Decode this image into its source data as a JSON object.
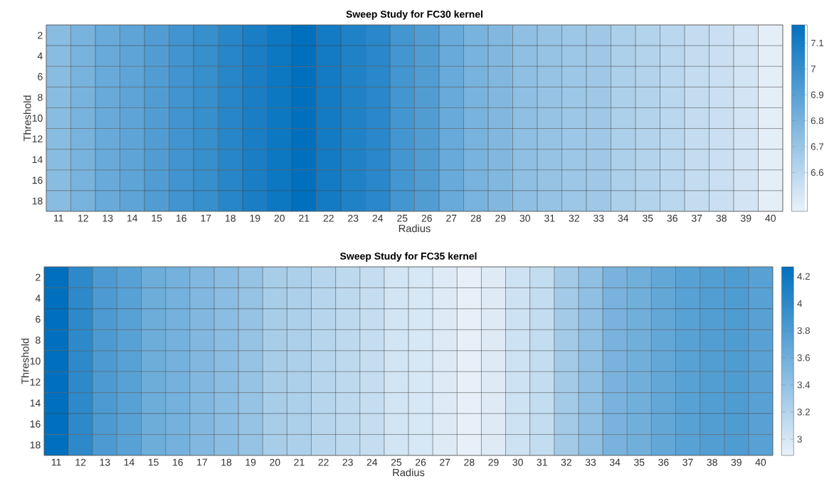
{
  "chart_data": [
    {
      "type": "heatmap",
      "title": "Sweep Study for FC30 kernel",
      "xlabel": "Radius",
      "ylabel": "Threshold",
      "categories": [
        "11",
        "12",
        "13",
        "14",
        "15",
        "16",
        "17",
        "18",
        "19",
        "20",
        "21",
        "22",
        "23",
        "24",
        "25",
        "26",
        "27",
        "28",
        "29",
        "30",
        "31",
        "32",
        "33",
        "34",
        "35",
        "36",
        "37",
        "38",
        "39",
        "40"
      ],
      "y_categories": [
        "2",
        "4",
        "6",
        "8",
        "10",
        "12",
        "14",
        "16",
        "18"
      ],
      "cells": [
        [
          6.75,
          6.8,
          6.85,
          6.88,
          6.92,
          6.97,
          7.0,
          7.05,
          7.09,
          7.13,
          7.17,
          7.11,
          7.07,
          7.04,
          6.96,
          6.92,
          6.85,
          6.8,
          6.77,
          6.73,
          6.71,
          6.69,
          6.68,
          6.64,
          6.62,
          6.6,
          6.57,
          6.55,
          6.52,
          6.47
        ],
        [
          6.75,
          6.8,
          6.85,
          6.88,
          6.92,
          6.97,
          7.0,
          7.05,
          7.09,
          7.13,
          7.17,
          7.11,
          7.07,
          7.04,
          6.96,
          6.92,
          6.85,
          6.8,
          6.77,
          6.73,
          6.71,
          6.69,
          6.68,
          6.64,
          6.62,
          6.6,
          6.57,
          6.55,
          6.52,
          6.47
        ],
        [
          6.75,
          6.8,
          6.85,
          6.88,
          6.92,
          6.97,
          7.0,
          7.05,
          7.09,
          7.13,
          7.17,
          7.11,
          7.07,
          7.04,
          6.96,
          6.92,
          6.85,
          6.8,
          6.77,
          6.73,
          6.71,
          6.69,
          6.68,
          6.64,
          6.62,
          6.6,
          6.57,
          6.55,
          6.52,
          6.47
        ],
        [
          6.75,
          6.8,
          6.85,
          6.88,
          6.92,
          6.97,
          7.0,
          7.05,
          7.09,
          7.13,
          7.17,
          7.11,
          7.07,
          7.04,
          6.96,
          6.92,
          6.85,
          6.8,
          6.77,
          6.73,
          6.71,
          6.69,
          6.68,
          6.64,
          6.62,
          6.6,
          6.57,
          6.55,
          6.52,
          6.47
        ],
        [
          6.75,
          6.8,
          6.85,
          6.88,
          6.92,
          6.97,
          7.0,
          7.05,
          7.09,
          7.13,
          7.17,
          7.11,
          7.07,
          7.04,
          6.96,
          6.92,
          6.85,
          6.8,
          6.77,
          6.73,
          6.71,
          6.69,
          6.68,
          6.64,
          6.62,
          6.6,
          6.57,
          6.55,
          6.52,
          6.47
        ],
        [
          6.75,
          6.8,
          6.85,
          6.88,
          6.92,
          6.97,
          7.0,
          7.05,
          7.09,
          7.13,
          7.17,
          7.11,
          7.07,
          7.04,
          6.96,
          6.92,
          6.85,
          6.8,
          6.77,
          6.73,
          6.71,
          6.69,
          6.68,
          6.64,
          6.62,
          6.6,
          6.57,
          6.55,
          6.52,
          6.47
        ],
        [
          6.75,
          6.8,
          6.85,
          6.88,
          6.92,
          6.97,
          7.0,
          7.05,
          7.09,
          7.13,
          7.17,
          7.11,
          7.07,
          7.04,
          6.96,
          6.92,
          6.85,
          6.8,
          6.77,
          6.73,
          6.71,
          6.69,
          6.68,
          6.64,
          6.62,
          6.6,
          6.57,
          6.55,
          6.52,
          6.47
        ],
        [
          6.75,
          6.8,
          6.85,
          6.88,
          6.92,
          6.97,
          7.0,
          7.05,
          7.09,
          7.13,
          7.17,
          7.11,
          7.07,
          7.04,
          6.96,
          6.92,
          6.85,
          6.8,
          6.77,
          6.73,
          6.71,
          6.69,
          6.68,
          6.64,
          6.62,
          6.6,
          6.57,
          6.55,
          6.52,
          6.47
        ],
        [
          6.75,
          6.8,
          6.85,
          6.88,
          6.92,
          6.97,
          7.0,
          7.05,
          7.09,
          7.13,
          7.17,
          7.11,
          7.07,
          7.04,
          6.96,
          6.92,
          6.85,
          6.8,
          6.77,
          6.73,
          6.71,
          6.69,
          6.68,
          6.64,
          6.62,
          6.6,
          6.57,
          6.55,
          6.52,
          6.47
        ]
      ],
      "clim": [
        6.45,
        7.17
      ],
      "cticks": [
        6.6,
        6.7,
        6.8,
        6.9,
        7,
        7.1
      ]
    },
    {
      "type": "heatmap",
      "title": "Sweep Study for FC35 kernel",
      "xlabel": "Radius",
      "ylabel": "Threshold",
      "categories": [
        "11",
        "12",
        "13",
        "14",
        "15",
        "16",
        "17",
        "18",
        "19",
        "20",
        "21",
        "22",
        "23",
        "24",
        "25",
        "26",
        "27",
        "28",
        "29",
        "30",
        "31",
        "32",
        "33",
        "34",
        "35",
        "36",
        "37",
        "38",
        "39",
        "40"
      ],
      "y_categories": [
        "2",
        "4",
        "6",
        "8",
        "10",
        "12",
        "14",
        "16",
        "18"
      ],
      "cells": [
        [
          4.27,
          4.0,
          3.82,
          3.75,
          3.62,
          3.58,
          3.5,
          3.45,
          3.38,
          3.28,
          3.25,
          3.18,
          3.15,
          3.1,
          3.02,
          3.0,
          2.95,
          2.9,
          2.95,
          3.05,
          3.12,
          3.3,
          3.42,
          3.55,
          3.6,
          3.68,
          3.75,
          3.78,
          3.8,
          3.75
        ],
        [
          4.27,
          4.0,
          3.82,
          3.75,
          3.62,
          3.58,
          3.5,
          3.45,
          3.38,
          3.28,
          3.25,
          3.18,
          3.15,
          3.1,
          3.02,
          3.0,
          2.95,
          2.9,
          2.95,
          3.05,
          3.12,
          3.3,
          3.42,
          3.55,
          3.6,
          3.68,
          3.75,
          3.78,
          3.8,
          3.75
        ],
        [
          4.27,
          4.0,
          3.82,
          3.75,
          3.62,
          3.58,
          3.5,
          3.45,
          3.38,
          3.28,
          3.25,
          3.18,
          3.15,
          3.1,
          3.02,
          3.0,
          2.95,
          2.9,
          2.95,
          3.05,
          3.12,
          3.3,
          3.42,
          3.55,
          3.6,
          3.68,
          3.75,
          3.78,
          3.8,
          3.75
        ],
        [
          4.27,
          4.0,
          3.82,
          3.75,
          3.62,
          3.58,
          3.5,
          3.45,
          3.38,
          3.28,
          3.25,
          3.18,
          3.15,
          3.1,
          3.02,
          3.0,
          2.95,
          2.9,
          2.95,
          3.05,
          3.12,
          3.3,
          3.42,
          3.55,
          3.6,
          3.68,
          3.75,
          3.78,
          3.8,
          3.75
        ],
        [
          4.27,
          4.0,
          3.82,
          3.75,
          3.62,
          3.58,
          3.5,
          3.45,
          3.38,
          3.28,
          3.25,
          3.18,
          3.15,
          3.1,
          3.02,
          3.0,
          2.95,
          2.9,
          2.95,
          3.05,
          3.12,
          3.3,
          3.42,
          3.55,
          3.6,
          3.68,
          3.75,
          3.78,
          3.8,
          3.75
        ],
        [
          4.27,
          4.0,
          3.82,
          3.75,
          3.62,
          3.58,
          3.5,
          3.45,
          3.38,
          3.28,
          3.25,
          3.18,
          3.15,
          3.1,
          3.02,
          3.0,
          2.95,
          2.9,
          2.95,
          3.05,
          3.12,
          3.3,
          3.42,
          3.55,
          3.6,
          3.68,
          3.75,
          3.78,
          3.8,
          3.75
        ],
        [
          4.27,
          4.0,
          3.82,
          3.75,
          3.62,
          3.58,
          3.5,
          3.45,
          3.38,
          3.28,
          3.25,
          3.18,
          3.15,
          3.1,
          3.02,
          3.0,
          2.95,
          2.9,
          2.95,
          3.05,
          3.12,
          3.3,
          3.42,
          3.55,
          3.6,
          3.68,
          3.75,
          3.78,
          3.8,
          3.75
        ],
        [
          4.27,
          4.0,
          3.82,
          3.75,
          3.62,
          3.58,
          3.5,
          3.45,
          3.38,
          3.28,
          3.25,
          3.18,
          3.15,
          3.1,
          3.02,
          3.0,
          2.95,
          2.9,
          2.95,
          3.05,
          3.12,
          3.3,
          3.42,
          3.55,
          3.6,
          3.68,
          3.75,
          3.78,
          3.8,
          3.75
        ],
        [
          4.27,
          4.0,
          3.82,
          3.75,
          3.62,
          3.58,
          3.5,
          3.45,
          3.38,
          3.28,
          3.25,
          3.18,
          3.15,
          3.1,
          3.02,
          3.0,
          2.95,
          2.9,
          2.95,
          3.05,
          3.12,
          3.3,
          3.42,
          3.55,
          3.6,
          3.68,
          3.75,
          3.78,
          3.8,
          3.75
        ]
      ],
      "clim": [
        2.88,
        4.27
      ],
      "cticks": [
        3,
        3.2,
        3.4,
        3.6,
        3.8,
        4,
        4.2
      ]
    }
  ]
}
